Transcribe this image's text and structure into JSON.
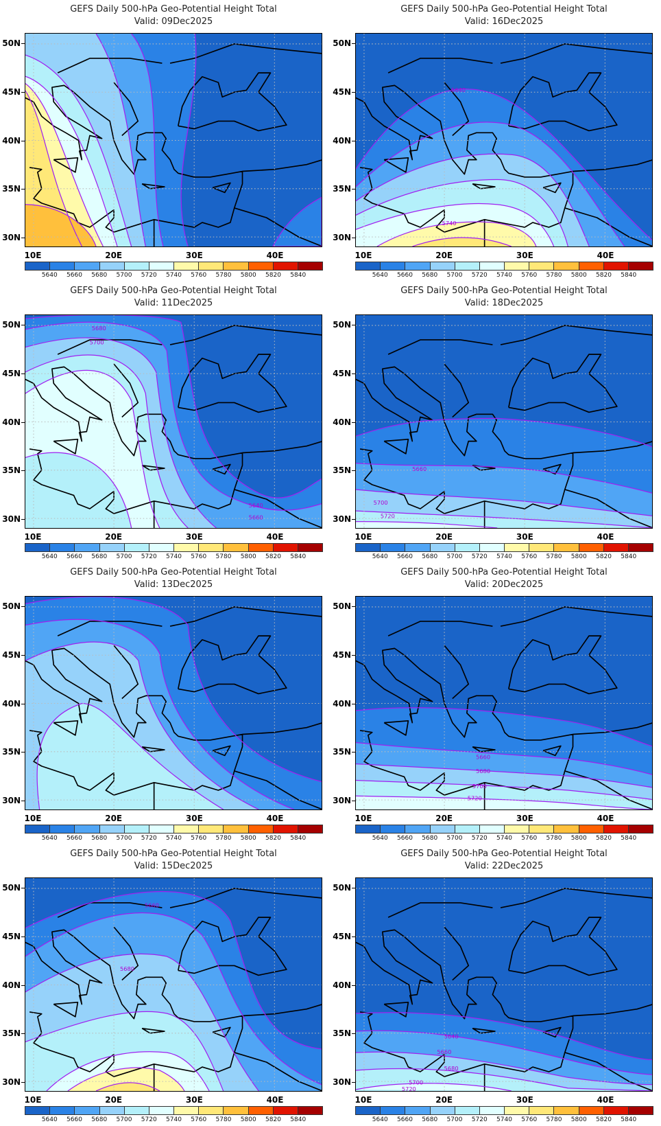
{
  "panels": [
    {
      "title": "GEFS Daily 500-hPa Geo-Potential Height Total",
      "valid": "Valid: 09Dec2025",
      "contour_labels": []
    },
    {
      "title": "GEFS Daily 500-hPa Geo-Potential Height Total",
      "valid": "Valid: 16Dec2025",
      "contour_labels": [
        "5640",
        "5740"
      ]
    },
    {
      "title": "GEFS Daily 500-hPa Geo-Potential Height Total",
      "valid": "Valid: 11Dec2025",
      "contour_labels": [
        "5680",
        "5700",
        "5640",
        "5660"
      ]
    },
    {
      "title": "GEFS Daily 500-hPa Geo-Potential Height Total",
      "valid": "Valid: 18Dec2025",
      "contour_labels": [
        "5660",
        "5700",
        "5720"
      ]
    },
    {
      "title": "GEFS Daily 500-hPa Geo-Potential Height Total",
      "valid": "Valid: 13Dec2025",
      "contour_labels": []
    },
    {
      "title": "GEFS Daily 500-hPa Geo-Potential Height Total",
      "valid": "Valid: 20Dec2025",
      "contour_labels": [
        "5660",
        "5680",
        "5700",
        "5720"
      ]
    },
    {
      "title": "GEFS Daily 500-hPa Geo-Potential Height Total",
      "valid": "Valid: 15Dec2025",
      "contour_labels": [
        "5660",
        "5680"
      ]
    },
    {
      "title": "GEFS Daily 500-hPa Geo-Potential Height Total",
      "valid": "Valid: 22Dec2025",
      "contour_labels": [
        "5640",
        "5660",
        "5680",
        "5700",
        "5720"
      ]
    }
  ],
  "axes": {
    "lat_labels": [
      {
        "text": "50N",
        "lat": 50
      },
      {
        "text": "45N",
        "lat": 45
      },
      {
        "text": "40N",
        "lat": 40
      },
      {
        "text": "35N",
        "lat": 35
      },
      {
        "text": "30N",
        "lat": 30
      }
    ],
    "lon_labels": [
      {
        "text": "10E",
        "lon": 10
      },
      {
        "text": "20E",
        "lon": 20
      },
      {
        "text": "30E",
        "lon": 30
      },
      {
        "text": "40E",
        "lon": 40
      }
    ]
  },
  "colorbar": {
    "labels": [
      "5640",
      "5660",
      "5680",
      "5700",
      "5720",
      "5740",
      "5760",
      "5780",
      "5800",
      "5820",
      "5840"
    ],
    "colors": [
      "#1a64c8",
      "#2a82e6",
      "#50a5f5",
      "#96d2fa",
      "#b4f0fa",
      "#e1ffff",
      "#fffaaa",
      "#ffe878",
      "#ffc03c",
      "#ff6000",
      "#e11400",
      "#a50000"
    ]
  },
  "contour_color": "#a020f0"
}
